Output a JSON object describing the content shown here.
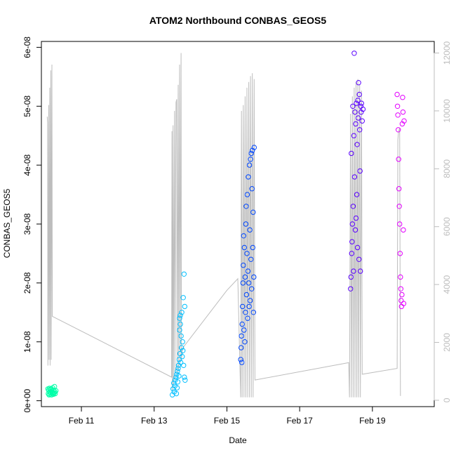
{
  "chart_data": {
    "type": "scatter",
    "title": "ATOM2 Northbound CONBAS_GEOS5",
    "xlabel": "Date",
    "ylabel": "CONBAS_GEOS5",
    "x_ticks": [
      "Feb 11",
      "Feb 13",
      "Feb 15",
      "Feb 17",
      "Feb 19"
    ],
    "x_tick_days": [
      11,
      13,
      15,
      17,
      19
    ],
    "xlim_days": [
      9.9,
      20.7
    ],
    "y_left_ticks": [
      "0e+00",
      "1e-08",
      "2e-08",
      "3e-08",
      "4e-08",
      "5e-08",
      "6e-08"
    ],
    "y_left_tick_values": [
      0,
      1e-08,
      2e-08,
      3e-08,
      4e-08,
      5e-08,
      6e-08
    ],
    "ylim_left": [
      -1e-09,
      6.1e-08
    ],
    "y_right_ticks": [
      "0",
      "2000",
      "4000",
      "6000",
      "8000",
      "10000",
      "12000"
    ],
    "y_right_tick_values": [
      0,
      2000,
      4000,
      6000,
      8000,
      10000,
      12000
    ],
    "ylim_right": [
      -220,
      12400
    ],
    "series": [
      {
        "color": "#00ffa8",
        "points": [
          [
            10.08,
            2e-09
          ],
          [
            10.09,
            1.2e-09
          ],
          [
            10.1,
            1.8e-09
          ],
          [
            10.11,
            1e-09
          ],
          [
            10.12,
            2.1e-09
          ],
          [
            10.13,
            1.5e-09
          ],
          [
            10.14,
            1.1e-09
          ],
          [
            10.15,
            1.9e-09
          ],
          [
            10.16,
            1.3e-09
          ],
          [
            10.17,
            2e-09
          ],
          [
            10.18,
            1e-09
          ],
          [
            10.19,
            1.6e-09
          ],
          [
            10.2,
            1.2e-09
          ],
          [
            10.21,
            2.2e-09
          ],
          [
            10.22,
            1.4e-09
          ],
          [
            10.23,
            1.1e-09
          ],
          [
            10.24,
            1.8e-09
          ],
          [
            10.25,
            1.3e-09
          ],
          [
            10.26,
            2.4e-09
          ],
          [
            10.27,
            1.5e-09
          ],
          [
            10.28,
            1.2e-09
          ],
          [
            10.3,
            1.7e-09
          ]
        ]
      },
      {
        "color": "#00bfff",
        "points": [
          [
            13.5,
            1e-09
          ],
          [
            13.52,
            2e-09
          ],
          [
            13.54,
            3e-09
          ],
          [
            13.55,
            1.5e-09
          ],
          [
            13.57,
            2.5e-09
          ],
          [
            13.58,
            3.5e-09
          ],
          [
            13.6,
            4e-09
          ],
          [
            13.61,
            1.2e-09
          ],
          [
            13.62,
            4.5e-09
          ],
          [
            13.63,
            2.2e-09
          ],
          [
            13.64,
            5e-09
          ],
          [
            13.65,
            3.2e-09
          ],
          [
            13.66,
            5.5e-09
          ],
          [
            13.67,
            6e-09
          ],
          [
            13.68,
            4.2e-09
          ],
          [
            13.69,
            7e-09
          ],
          [
            13.7,
            1.2e-08
          ],
          [
            13.7,
            1.4e-08
          ],
          [
            13.71,
            8e-09
          ],
          [
            13.72,
            1.45e-08
          ],
          [
            13.72,
            1.3e-08
          ],
          [
            13.73,
            6.5e-09
          ],
          [
            13.74,
            1.1e-08
          ],
          [
            13.75,
            9e-09
          ],
          [
            13.76,
            1.5e-08
          ],
          [
            13.77,
            7.5e-09
          ],
          [
            13.78,
            1e-08
          ],
          [
            13.79,
            8.5e-09
          ],
          [
            13.8,
            1.75e-08
          ],
          [
            13.81,
            6e-09
          ],
          [
            13.82,
            2.15e-08
          ],
          [
            13.83,
            4e-09
          ],
          [
            13.84,
            1.6e-08
          ],
          [
            13.85,
            3.5e-09
          ]
        ]
      },
      {
        "color": "#0047ff",
        "points": [
          [
            15.38,
            7e-09
          ],
          [
            15.39,
            9e-09
          ],
          [
            15.4,
            1.1e-08
          ],
          [
            15.41,
            6.5e-09
          ],
          [
            15.42,
            1.3e-08
          ],
          [
            15.43,
            1.6e-08
          ],
          [
            15.44,
            2e-08
          ],
          [
            15.45,
            2.3e-08
          ],
          [
            15.46,
            2.8e-08
          ],
          [
            15.47,
            1.2e-08
          ],
          [
            15.48,
            2.6e-08
          ],
          [
            15.49,
            1e-08
          ],
          [
            15.5,
            2.1e-08
          ],
          [
            15.51,
            1.5e-08
          ],
          [
            15.52,
            3e-08
          ],
          [
            15.53,
            3.3e-08
          ],
          [
            15.54,
            1.8e-08
          ],
          [
            15.55,
            2.5e-08
          ],
          [
            15.56,
            3.5e-08
          ],
          [
            15.57,
            1.4e-08
          ],
          [
            15.58,
            2.2e-08
          ],
          [
            15.59,
            3.8e-08
          ],
          [
            15.6,
            2e-08
          ],
          [
            15.61,
            1.6e-08
          ],
          [
            15.62,
            4e-08
          ],
          [
            15.63,
            2.9e-08
          ],
          [
            15.64,
            1.7e-08
          ],
          [
            15.65,
            4.1e-08
          ],
          [
            15.66,
            2.4e-08
          ],
          [
            15.67,
            4.2e-08
          ],
          [
            15.68,
            1.9e-08
          ],
          [
            15.69,
            3.6e-08
          ],
          [
            15.7,
            4.25e-08
          ],
          [
            15.71,
            2.6e-08
          ],
          [
            15.72,
            3.2e-08
          ],
          [
            15.73,
            1.5e-08
          ],
          [
            15.74,
            2.1e-08
          ],
          [
            15.75,
            4.3e-08
          ]
        ]
      },
      {
        "color": "#5a00ff",
        "points": [
          [
            18.4,
            1.9e-08
          ],
          [
            18.41,
            2.1e-08
          ],
          [
            18.42,
            4.2e-08
          ],
          [
            18.43,
            2.5e-08
          ],
          [
            18.44,
            2.7e-08
          ],
          [
            18.45,
            3e-08
          ],
          [
            18.46,
            5e-08
          ],
          [
            18.47,
            3.3e-08
          ],
          [
            18.48,
            2.2e-08
          ],
          [
            18.49,
            4.5e-08
          ],
          [
            18.5,
            5.9e-08
          ],
          [
            18.51,
            3.8e-08
          ],
          [
            18.52,
            4.9e-08
          ],
          [
            18.53,
            2.9e-08
          ],
          [
            18.54,
            4.7e-08
          ],
          [
            18.55,
            3.1e-08
          ],
          [
            18.56,
            5.05e-08
          ],
          [
            18.57,
            3.5e-08
          ],
          [
            18.58,
            4.35e-08
          ],
          [
            18.59,
            2.6e-08
          ],
          [
            18.6,
            5.1e-08
          ],
          [
            18.61,
            4.8e-08
          ],
          [
            18.62,
            5.4e-08
          ],
          [
            18.63,
            2.4e-08
          ],
          [
            18.64,
            5.2e-08
          ],
          [
            18.65,
            4.6e-08
          ],
          [
            18.66,
            3.9e-08
          ],
          [
            18.67,
            2.2e-08
          ],
          [
            18.68,
            5e-08
          ],
          [
            18.69,
            4.9e-08
          ],
          [
            18.7,
            5.05e-08
          ],
          [
            18.72,
            4.75e-08
          ],
          [
            18.74,
            4.95e-08
          ]
        ]
      },
      {
        "color": "#e300ff",
        "points": [
          [
            19.68,
            5.2e-08
          ],
          [
            19.69,
            5e-08
          ],
          [
            19.7,
            4.85e-08
          ],
          [
            19.71,
            4.6e-08
          ],
          [
            19.72,
            4.1e-08
          ],
          [
            19.73,
            3.6e-08
          ],
          [
            19.74,
            3.3e-08
          ],
          [
            19.75,
            3e-08
          ],
          [
            19.76,
            2.5e-08
          ],
          [
            19.77,
            2.1e-08
          ],
          [
            19.78,
            1.9e-08
          ],
          [
            19.79,
            1.7e-08
          ],
          [
            19.8,
            1.6e-08
          ],
          [
            19.81,
            1.8e-08
          ],
          [
            19.82,
            4.7e-08
          ],
          [
            19.83,
            5.15e-08
          ],
          [
            19.84,
            4.9e-08
          ],
          [
            19.85,
            2.9e-08
          ],
          [
            19.86,
            1.65e-08
          ],
          [
            19.87,
            4.75e-08
          ]
        ]
      }
    ],
    "altitude_series": {
      "color": "#bdbdbd",
      "points": [
        [
          10.06,
          9800
        ],
        [
          10.07,
          9600
        ],
        [
          10.08,
          1200
        ],
        [
          10.1,
          10200
        ],
        [
          10.11,
          1400
        ],
        [
          10.13,
          10800
        ],
        [
          10.14,
          1200
        ],
        [
          10.16,
          11400
        ],
        [
          10.17,
          1400
        ],
        [
          10.19,
          11600
        ],
        [
          10.2,
          2900
        ],
        [
          13.48,
          800
        ],
        [
          13.49,
          9300
        ],
        [
          13.5,
          300
        ],
        [
          13.52,
          9500
        ],
        [
          13.53,
          500
        ],
        [
          13.56,
          10000
        ],
        [
          13.57,
          700
        ],
        [
          13.6,
          10300
        ],
        [
          13.62,
          10400
        ],
        [
          13.63,
          900
        ],
        [
          13.66,
          10900
        ],
        [
          13.67,
          1000
        ],
        [
          13.7,
          11600
        ],
        [
          13.71,
          1200
        ],
        [
          13.74,
          12000
        ],
        [
          13.75,
          1400
        ],
        [
          13.78,
          1800
        ],
        [
          15.0,
          3800
        ],
        [
          15.3,
          4200
        ],
        [
          15.38,
          100
        ],
        [
          15.4,
          10000
        ],
        [
          15.42,
          100
        ],
        [
          15.45,
          10200
        ],
        [
          15.47,
          100
        ],
        [
          15.5,
          10500
        ],
        [
          15.52,
          100
        ],
        [
          15.55,
          10800
        ],
        [
          15.57,
          100
        ],
        [
          15.6,
          11000
        ],
        [
          15.62,
          100
        ],
        [
          15.65,
          11200
        ],
        [
          15.67,
          100
        ],
        [
          15.7,
          11300
        ],
        [
          15.72,
          100
        ],
        [
          15.75,
          11100
        ],
        [
          15.77,
          700
        ],
        [
          18.35,
          1300
        ],
        [
          18.37,
          100
        ],
        [
          18.4,
          9900
        ],
        [
          18.42,
          100
        ],
        [
          18.45,
          10500
        ],
        [
          18.47,
          100
        ],
        [
          18.5,
          10800
        ],
        [
          18.52,
          100
        ],
        [
          18.55,
          11000
        ],
        [
          18.57,
          100
        ],
        [
          18.6,
          11100
        ],
        [
          18.62,
          100
        ],
        [
          18.65,
          10900
        ],
        [
          18.67,
          100
        ],
        [
          18.7,
          10700
        ],
        [
          18.72,
          900
        ],
        [
          19.68,
          1100
        ],
        [
          19.7,
          9000
        ],
        [
          19.72,
          9300
        ],
        [
          19.75,
          9400
        ],
        [
          19.77,
          150
        ]
      ]
    }
  }
}
